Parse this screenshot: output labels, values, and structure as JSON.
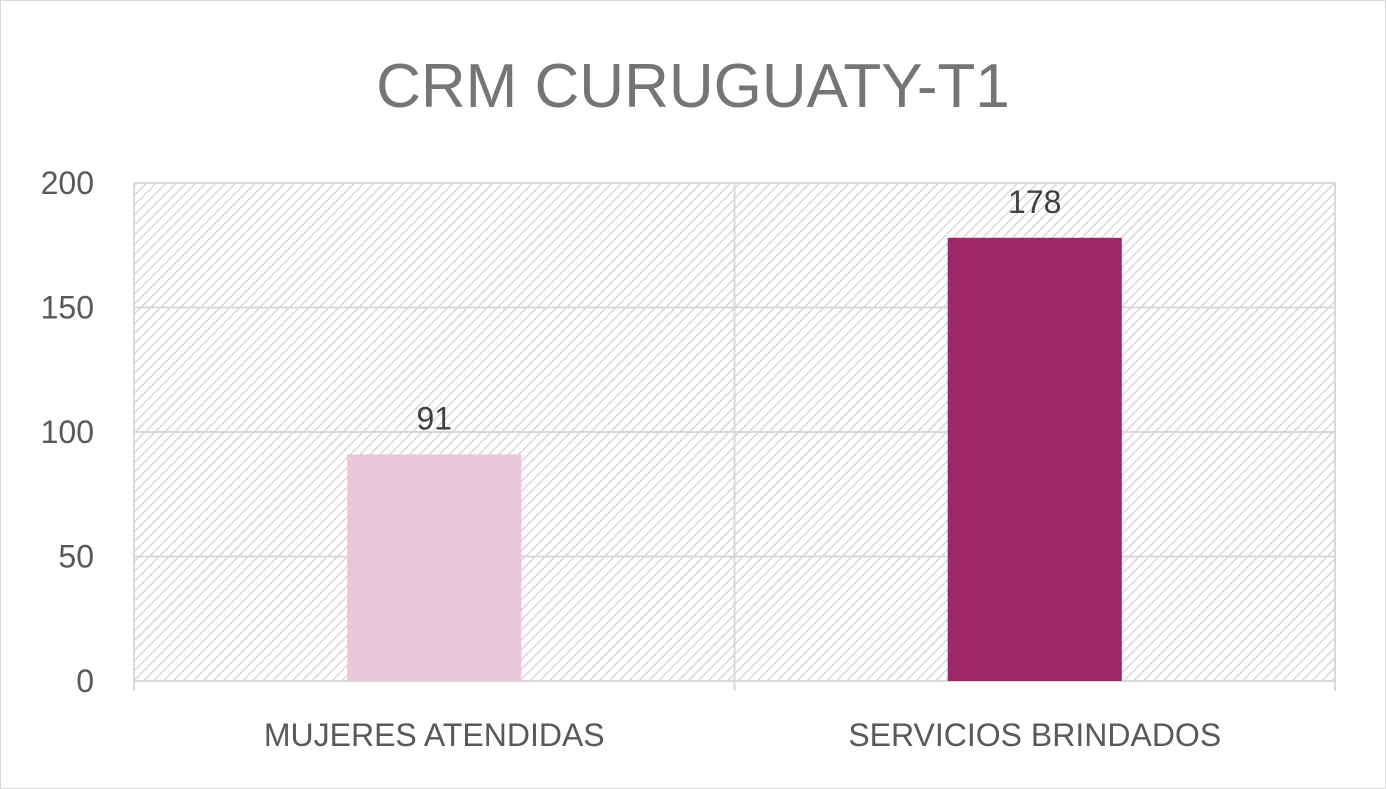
{
  "chart_data": {
    "type": "bar",
    "title": "CRM CURUGUATY-T1",
    "categories": [
      "MUJERES ATENDIDAS",
      "SERVICIOS BRINDADOS"
    ],
    "values": [
      91,
      178
    ],
    "data_labels": [
      "91",
      "178"
    ],
    "bar_colors": [
      "#ebc6d9",
      "#9e2769"
    ],
    "ylim": [
      0,
      200
    ],
    "yticks": [
      0,
      50,
      100,
      150,
      200
    ],
    "ytick_labels": [
      "0",
      "50",
      "100",
      "150",
      "200"
    ],
    "grid": true,
    "plot_background": "hatched",
    "legend": "none"
  }
}
